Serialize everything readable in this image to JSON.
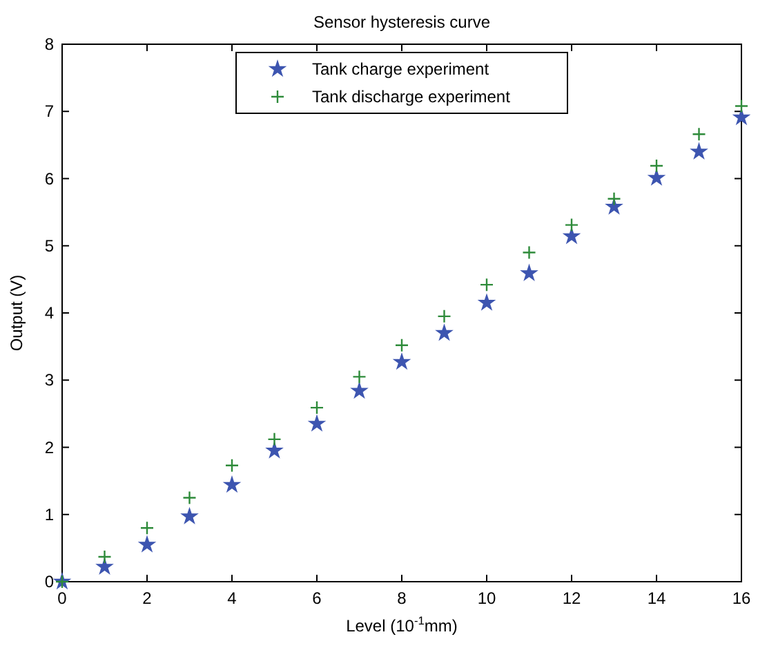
{
  "chart_data": {
    "type": "scatter",
    "title": "Sensor hysteresis curve",
    "xlabel": "Level (10$^{-1}$mm)",
    "ylabel": "Output (V)",
    "x": [
      0,
      1,
      2,
      3,
      4,
      5,
      6,
      7,
      8,
      9,
      10,
      11,
      12,
      13,
      14,
      15,
      16
    ],
    "series": [
      {
        "name": "Tank charge experiment",
        "color": "#3d55b0",
        "marker": "star",
        "values": [
          0,
          0.22,
          0.55,
          0.97,
          1.44,
          1.95,
          2.35,
          2.84,
          3.27,
          3.7,
          4.15,
          4.59,
          5.14,
          5.58,
          6.01,
          6.4,
          6.91
        ]
      },
      {
        "name": "Tank discharge experiment",
        "color": "#2e8b3a",
        "marker": "cross",
        "values": [
          0,
          0.37,
          0.8,
          1.25,
          1.73,
          2.12,
          2.59,
          3.05,
          3.52,
          3.95,
          4.42,
          4.9,
          5.31,
          5.7,
          6.19,
          6.66,
          7.08
        ]
      }
    ],
    "xlim": [
      0,
      16
    ],
    "xticks": [
      0,
      2,
      4,
      6,
      8,
      10,
      12,
      14,
      16
    ],
    "ylim": [
      0,
      8
    ],
    "yticks": [
      0,
      1,
      2,
      3,
      4,
      5,
      6,
      7,
      8
    ],
    "grid": false,
    "legend": "top"
  }
}
